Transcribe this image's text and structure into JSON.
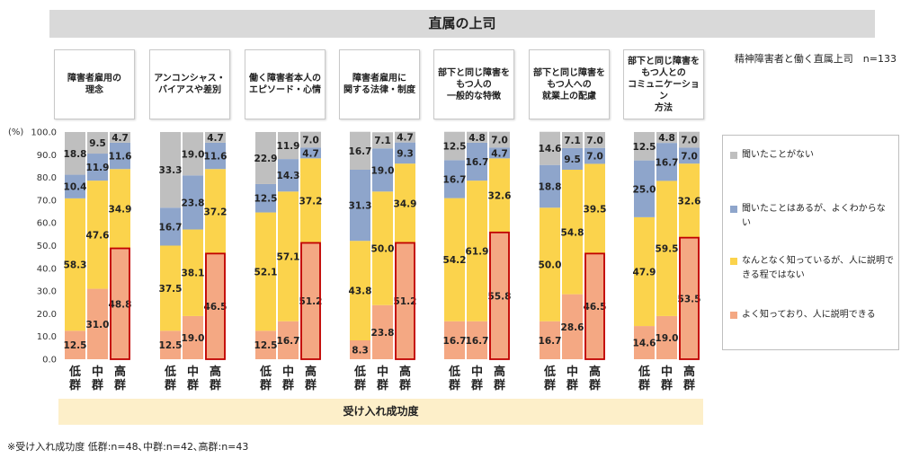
{
  "title": "直属の上司",
  "n_label": "精神障害者と働く直属上司　n=133",
  "y_unit": "(%)",
  "bottom_label": "受け入れ成功度",
  "footnote": "※受け入れ成功度 低群:n=48､中群:n=42､高群:n=43",
  "colors": {
    "never": "#bfbfbf",
    "heard": "#8ea5cb",
    "somewhat": "#fbd34c",
    "well": "#f4a883",
    "highlight_border": "#c00000"
  },
  "chart_data": {
    "type": "bar",
    "stacked": true,
    "ylim": [
      0,
      100
    ],
    "yticks": [
      "0.0",
      "10.0",
      "20.0",
      "30.0",
      "40.0",
      "50.0",
      "60.0",
      "70.0",
      "80.0",
      "90.0",
      "100.0"
    ],
    "groups": [
      "低群",
      "中群",
      "高群"
    ],
    "highlight_group": "高群",
    "legend": [
      "聞いたことがない",
      "聞いたことはあるが、よくわからない",
      "なんとなく知っているが、人に説明できる程ではない",
      "よく知っており、人に説明できる"
    ],
    "categories": [
      {
        "label": "障害者雇用の\n理念",
        "values": [
          {
            "well": 12.5,
            "somewhat": 58.3,
            "heard": 10.4,
            "never": 18.8
          },
          {
            "well": 31.0,
            "somewhat": 47.6,
            "heard": 11.9,
            "never": 9.5
          },
          {
            "well": 48.8,
            "somewhat": 34.9,
            "heard": 11.6,
            "never": 4.7
          }
        ]
      },
      {
        "label": "アンコンシャス・\nバイアスや差別",
        "values": [
          {
            "well": 12.5,
            "somewhat": 37.5,
            "heard": 16.7,
            "never": 33.3
          },
          {
            "well": 19.0,
            "somewhat": 38.1,
            "heard": 23.8,
            "never": 19.0
          },
          {
            "well": 46.5,
            "somewhat": 37.2,
            "heard": 11.6,
            "never": 4.7
          }
        ]
      },
      {
        "label": "働く障害者本人の\nエピソード・心情",
        "values": [
          {
            "well": 12.5,
            "somewhat": 52.1,
            "heard": 12.5,
            "never": 22.9
          },
          {
            "well": 16.7,
            "somewhat": 57.1,
            "heard": 14.3,
            "never": 11.9
          },
          {
            "well": 51.2,
            "somewhat": 37.2,
            "heard": 4.7,
            "never": 7.0
          }
        ]
      },
      {
        "label": "障害者雇用に\n関する法律・制度",
        "values": [
          {
            "well": 8.3,
            "somewhat": 43.8,
            "heard": 31.3,
            "never": 16.7
          },
          {
            "well": 23.8,
            "somewhat": 50.0,
            "heard": 19.0,
            "never": 7.1
          },
          {
            "well": 51.2,
            "somewhat": 34.9,
            "heard": 9.3,
            "never": 4.7
          }
        ]
      },
      {
        "label": "部下と同じ障害を\nもつ人の\n一般的な特徴",
        "values": [
          {
            "well": 16.7,
            "somewhat": 54.2,
            "heard": 16.7,
            "never": 12.5
          },
          {
            "well": 16.7,
            "somewhat": 61.9,
            "heard": 16.7,
            "never": 4.8
          },
          {
            "well": 55.8,
            "somewhat": 32.6,
            "heard": 4.7,
            "never": 7.0
          }
        ]
      },
      {
        "label": "部下と同じ障害を\nもつ人への\n就業上の配慮",
        "values": [
          {
            "well": 16.7,
            "somewhat": 50.0,
            "heard": 18.8,
            "never": 14.6
          },
          {
            "well": 28.6,
            "somewhat": 54.8,
            "heard": 9.5,
            "never": 7.1
          },
          {
            "well": 46.5,
            "somewhat": 39.5,
            "heard": 7.0,
            "never": 7.0
          }
        ]
      },
      {
        "label": "部下と同じ障害を\nもつ人との\nコミュニケーション\n方法",
        "values": [
          {
            "well": 14.6,
            "somewhat": 47.9,
            "heard": 25.0,
            "never": 12.5
          },
          {
            "well": 19.0,
            "somewhat": 59.5,
            "heard": 16.7,
            "never": 4.8
          },
          {
            "well": 53.5,
            "somewhat": 32.6,
            "heard": 7.0,
            "never": 7.0
          }
        ]
      }
    ]
  }
}
